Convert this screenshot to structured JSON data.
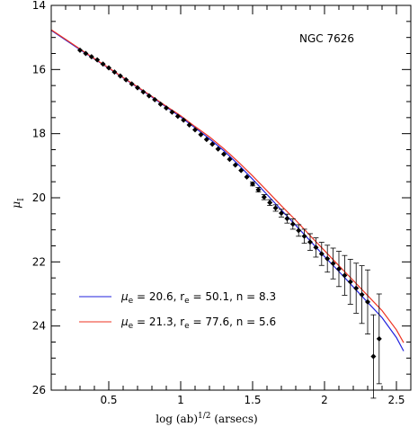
{
  "chart_data": {
    "type": "scatter",
    "annotation": "NGC 7626",
    "xlabel": "log (ab)",
    "xlabel_sup": "1/2",
    "xlabel_suffix": " (arsecs)",
    "ylabel": "μ",
    "ylabel_sub": "I",
    "xlim": [
      0.1,
      2.6
    ],
    "ylim": [
      26,
      14
    ],
    "x_ticks": [
      0.5,
      1,
      1.5,
      2,
      2.5
    ],
    "x_tick_labels": [
      "0.5",
      "1",
      "1.5",
      "2",
      "2.5"
    ],
    "y_ticks": [
      14,
      16,
      18,
      20,
      22,
      24,
      26
    ],
    "y_tick_labels": [
      "14",
      "16",
      "18",
      "20",
      "22",
      "24",
      "26"
    ],
    "grid": false,
    "legend_position": "bottom-left",
    "data_points": {
      "name": "",
      "color": "#000000",
      "x": [
        0.3,
        0.34,
        0.38,
        0.42,
        0.46,
        0.5,
        0.54,
        0.58,
        0.62,
        0.66,
        0.7,
        0.74,
        0.78,
        0.82,
        0.86,
        0.9,
        0.94,
        0.98,
        1.02,
        1.06,
        1.1,
        1.14,
        1.18,
        1.22,
        1.26,
        1.3,
        1.34,
        1.38,
        1.42,
        1.46,
        1.5,
        1.54,
        1.58,
        1.62,
        1.66,
        1.7,
        1.74,
        1.78,
        1.82,
        1.86,
        1.9,
        1.94,
        1.98,
        2.02,
        2.06,
        2.1,
        2.14,
        2.18,
        2.22,
        2.26,
        2.3,
        2.34,
        2.38
      ],
      "y": [
        15.4,
        15.5,
        15.6,
        15.7,
        15.83,
        15.95,
        16.08,
        16.2,
        16.32,
        16.45,
        16.57,
        16.7,
        16.82,
        16.94,
        17.08,
        17.2,
        17.33,
        17.46,
        17.58,
        17.73,
        17.88,
        18.03,
        18.18,
        18.33,
        18.48,
        18.64,
        18.8,
        18.98,
        19.15,
        19.35,
        19.57,
        19.75,
        19.98,
        20.15,
        20.32,
        20.48,
        20.65,
        20.82,
        21.02,
        21.2,
        21.38,
        21.55,
        21.75,
        21.9,
        22.05,
        22.22,
        22.42,
        22.62,
        22.82,
        23.02,
        23.25,
        24.95,
        24.4
      ],
      "yerr": [
        0.02,
        0.02,
        0.02,
        0.02,
        0.02,
        0.02,
        0.02,
        0.02,
        0.02,
        0.02,
        0.02,
        0.02,
        0.02,
        0.02,
        0.02,
        0.02,
        0.02,
        0.02,
        0.02,
        0.02,
        0.02,
        0.02,
        0.03,
        0.03,
        0.03,
        0.03,
        0.04,
        0.04,
        0.05,
        0.05,
        0.06,
        0.07,
        0.08,
        0.09,
        0.1,
        0.12,
        0.14,
        0.16,
        0.18,
        0.22,
        0.26,
        0.3,
        0.36,
        0.42,
        0.48,
        0.55,
        0.62,
        0.7,
        0.78,
        0.9,
        1.0,
        1.3,
        1.4
      ]
    },
    "series": [
      {
        "name": "μe = 20.6, re = 50.1, n = 8.3",
        "mu_e": "20.6",
        "r_e": "50.1",
        "n_val": "8.3",
        "color": "#2222dd",
        "x": [
          0.1,
          0.2,
          0.3,
          0.4,
          0.5,
          0.6,
          0.7,
          0.8,
          0.9,
          1.0,
          1.1,
          1.2,
          1.3,
          1.4,
          1.5,
          1.6,
          1.7,
          1.8,
          1.9,
          2.0,
          2.1,
          2.2,
          2.3,
          2.4,
          2.5,
          2.55
        ],
        "y": [
          14.78,
          15.08,
          15.38,
          15.67,
          15.96,
          16.26,
          16.56,
          16.86,
          17.17,
          17.48,
          17.82,
          18.16,
          18.53,
          18.96,
          19.42,
          19.9,
          20.38,
          20.86,
          21.34,
          21.83,
          22.3,
          22.78,
          23.26,
          23.74,
          24.36,
          24.78
        ]
      },
      {
        "name": "μe = 21.3, re = 77.6, n = 5.6",
        "mu_e": "21.3",
        "r_e": "77.6",
        "n_val": "5.6",
        "color": "#ee3322",
        "x": [
          0.1,
          0.2,
          0.3,
          0.4,
          0.5,
          0.6,
          0.7,
          0.8,
          0.9,
          1.0,
          1.1,
          1.2,
          1.3,
          1.4,
          1.5,
          1.6,
          1.7,
          1.8,
          1.9,
          2.0,
          2.1,
          2.2,
          2.3,
          2.4,
          2.5,
          2.55
        ],
        "y": [
          14.76,
          15.06,
          15.36,
          15.66,
          15.95,
          16.25,
          16.54,
          16.84,
          17.15,
          17.44,
          17.78,
          18.1,
          18.47,
          18.88,
          19.32,
          19.78,
          20.25,
          20.7,
          21.18,
          21.65,
          22.12,
          22.58,
          23.05,
          23.52,
          24.12,
          24.52
        ]
      }
    ]
  }
}
